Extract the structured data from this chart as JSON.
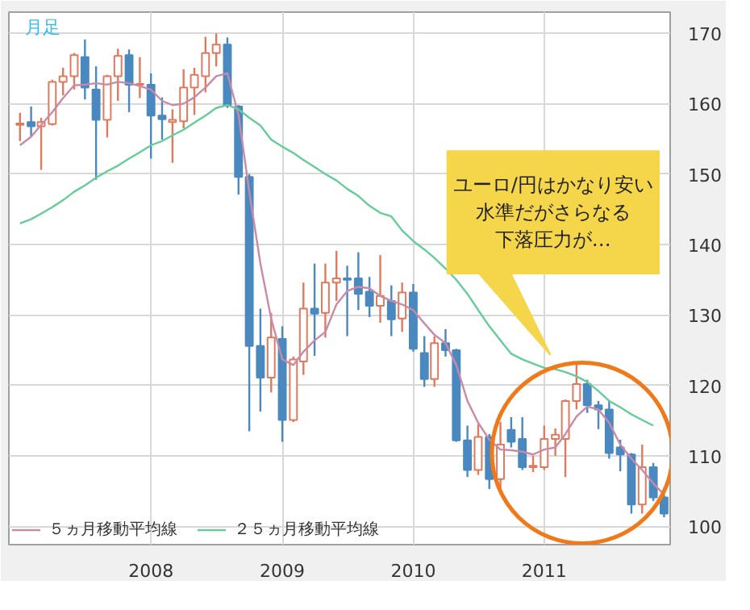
{
  "chart_data": {
    "type": "candlestick",
    "subtitle": "月足",
    "x": [
      "2007-01",
      "2007-02",
      "2007-03",
      "2007-04",
      "2007-05",
      "2007-06",
      "2007-07",
      "2007-08",
      "2007-09",
      "2007-10",
      "2007-11",
      "2007-12",
      "2008-01",
      "2008-02",
      "2008-03",
      "2008-04",
      "2008-05",
      "2008-06",
      "2008-07",
      "2008-08",
      "2008-09",
      "2008-10",
      "2008-11",
      "2008-12",
      "2009-01",
      "2009-02",
      "2009-03",
      "2009-04",
      "2009-05",
      "2009-06",
      "2009-07",
      "2009-08",
      "2009-09",
      "2009-10",
      "2009-11",
      "2009-12",
      "2010-01",
      "2010-02",
      "2010-03",
      "2010-04",
      "2010-05",
      "2010-06",
      "2010-07",
      "2010-08",
      "2010-09",
      "2010-10",
      "2010-11",
      "2010-12",
      "2011-01",
      "2011-02",
      "2011-03",
      "2011-04",
      "2011-05",
      "2011-06",
      "2011-07",
      "2011-08",
      "2011-09",
      "2011-10",
      "2011-11",
      "2011-12"
    ],
    "ohlc": [
      [
        157.0,
        158.7,
        154.7,
        157.2
      ],
      [
        157.4,
        159.6,
        155.3,
        156.8
      ],
      [
        156.8,
        158.0,
        150.6,
        157.4
      ],
      [
        157.1,
        163.4,
        156.9,
        163.1
      ],
      [
        163.1,
        165.1,
        161.2,
        163.9
      ],
      [
        163.9,
        167.2,
        162.0,
        166.9
      ],
      [
        166.6,
        169.1,
        160.6,
        162.3
      ],
      [
        162.0,
        165.3,
        149.2,
        157.7
      ],
      [
        157.7,
        164.1,
        155.2,
        163.9
      ],
      [
        163.9,
        167.8,
        160.4,
        166.8
      ],
      [
        166.9,
        167.7,
        158.8,
        162.7
      ],
      [
        162.7,
        166.6,
        160.8,
        162.8
      ],
      [
        162.7,
        164.3,
        152.2,
        158.3
      ],
      [
        158.3,
        160.9,
        154.9,
        157.8
      ],
      [
        157.4,
        159.2,
        151.6,
        157.7
      ],
      [
        157.5,
        164.9,
        156.5,
        162.3
      ],
      [
        162.3,
        165.1,
        158.4,
        164.1
      ],
      [
        163.9,
        169.5,
        161.6,
        167.2
      ],
      [
        167.2,
        170.0,
        165.3,
        168.4
      ],
      [
        168.4,
        169.4,
        159.4,
        159.8
      ],
      [
        159.6,
        159.8,
        147.1,
        149.6
      ],
      [
        149.6,
        150.0,
        113.5,
        125.6
      ],
      [
        125.6,
        130.9,
        116.3,
        121.1
      ],
      [
        121.1,
        130.3,
        119.0,
        126.8
      ],
      [
        126.6,
        128.4,
        112.0,
        115.1
      ],
      [
        115.1,
        124.1,
        114.8,
        123.7
      ],
      [
        123.4,
        134.6,
        121.5,
        130.9
      ],
      [
        130.9,
        137.3,
        124.2,
        130.2
      ],
      [
        130.3,
        137.3,
        126.8,
        134.6
      ],
      [
        134.6,
        139.1,
        132.0,
        135.2
      ],
      [
        135.2,
        137.0,
        127.0,
        135.0
      ],
      [
        135.2,
        138.9,
        130.7,
        133.0
      ],
      [
        133.3,
        135.4,
        129.7,
        131.3
      ],
      [
        131.3,
        138.5,
        128.9,
        132.7
      ],
      [
        132.0,
        134.2,
        127.0,
        129.4
      ],
      [
        129.5,
        134.6,
        127.6,
        133.2
      ],
      [
        133.2,
        134.4,
        124.8,
        125.2
      ],
      [
        124.6,
        127.0,
        119.8,
        120.9
      ],
      [
        120.9,
        127.0,
        119.8,
        126.0
      ],
      [
        126.0,
        128.0,
        124.1,
        125.0
      ],
      [
        125.0,
        125.2,
        112.0,
        112.2
      ],
      [
        112.2,
        114.3,
        107.0,
        108.0
      ],
      [
        108.0,
        114.5,
        107.3,
        112.7
      ],
      [
        112.7,
        113.1,
        105.3,
        106.7
      ],
      [
        106.7,
        114.8,
        105.3,
        111.6
      ],
      [
        113.7,
        115.5,
        111.2,
        112.0
      ],
      [
        112.4,
        115.5,
        108.0,
        108.4
      ],
      [
        108.4,
        110.0,
        107.7,
        108.6
      ],
      [
        108.4,
        114.3,
        108.0,
        112.4
      ],
      [
        112.4,
        113.9,
        110.0,
        113.0
      ],
      [
        112.4,
        118.0,
        107.0,
        117.8
      ],
      [
        117.8,
        123.1,
        116.6,
        120.2
      ],
      [
        120.2,
        120.8,
        116.1,
        117.2
      ],
      [
        117.2,
        117.8,
        113.8,
        116.6
      ],
      [
        116.6,
        117.8,
        109.6,
        110.4
      ],
      [
        111.2,
        112.3,
        107.8,
        110.2
      ],
      [
        110.2,
        110.4,
        101.8,
        103.1
      ],
      [
        103.1,
        111.6,
        101.8,
        108.4
      ],
      [
        108.4,
        109.0,
        103.6,
        104.1
      ],
      [
        104.1,
        104.5,
        101.3,
        101.8
      ]
    ],
    "series": [
      {
        "type": "line",
        "name": "５ヵ月移動平均線",
        "color": "#c98aa8",
        "values": [
          154.1,
          155.3,
          157.0,
          158.8,
          160.8,
          162.6,
          162.7,
          162.9,
          162.7,
          163.1,
          162.9,
          162.5,
          162.0,
          160.4,
          159.8,
          160.0,
          160.9,
          162.3,
          163.9,
          164.3,
          158.4,
          147.5,
          137.3,
          129.5,
          123.7,
          122.9,
          124.8,
          126.4,
          127.6,
          131.5,
          133.4,
          134.0,
          133.8,
          132.7,
          132.0,
          131.5,
          130.7,
          128.8,
          127.2,
          126.0,
          122.9,
          117.8,
          114.7,
          112.3,
          110.9,
          110.8,
          110.6,
          110.2,
          110.9,
          111.2,
          113.1,
          115.6,
          117.0,
          116.6,
          114.7,
          111.6,
          109.6,
          108.0,
          106.1,
          104.5
        ]
      },
      {
        "type": "line",
        "name": "２５ヵ月移動平均線",
        "color": "#66cc99",
        "values": [
          143.0,
          143.6,
          144.4,
          145.3,
          146.3,
          147.5,
          148.4,
          149.5,
          150.4,
          151.2,
          152.2,
          153.1,
          154.1,
          154.7,
          155.5,
          156.3,
          157.3,
          158.3,
          159.4,
          159.8,
          159.2,
          158.0,
          156.9,
          154.9,
          153.9,
          153.0,
          152.0,
          151.0,
          150.0,
          149.1,
          147.9,
          146.9,
          145.5,
          144.5,
          144.0,
          142.0,
          140.5,
          139.3,
          138.1,
          136.6,
          135.0,
          133.0,
          130.7,
          128.4,
          126.4,
          124.5,
          123.7,
          123.1,
          122.5,
          122.3,
          121.9,
          121.3,
          120.5,
          119.2,
          117.8,
          116.9,
          115.9,
          115.1,
          114.3,
          null
        ]
      }
    ],
    "xlim": [
      "2006-12-01",
      "2011-12-18"
    ],
    "xticks": [
      "2008",
      "2009",
      "2010",
      "2011"
    ],
    "ylim": [
      97.4,
      173
    ],
    "yticks": [
      100,
      110,
      120,
      130,
      140,
      150,
      160,
      170
    ],
    "grid": true,
    "legend": "bottom left",
    "annotations": [
      "ユーロ/円はかなり安い",
      "水準だがさらなる",
      "下落圧力が…"
    ]
  }
}
